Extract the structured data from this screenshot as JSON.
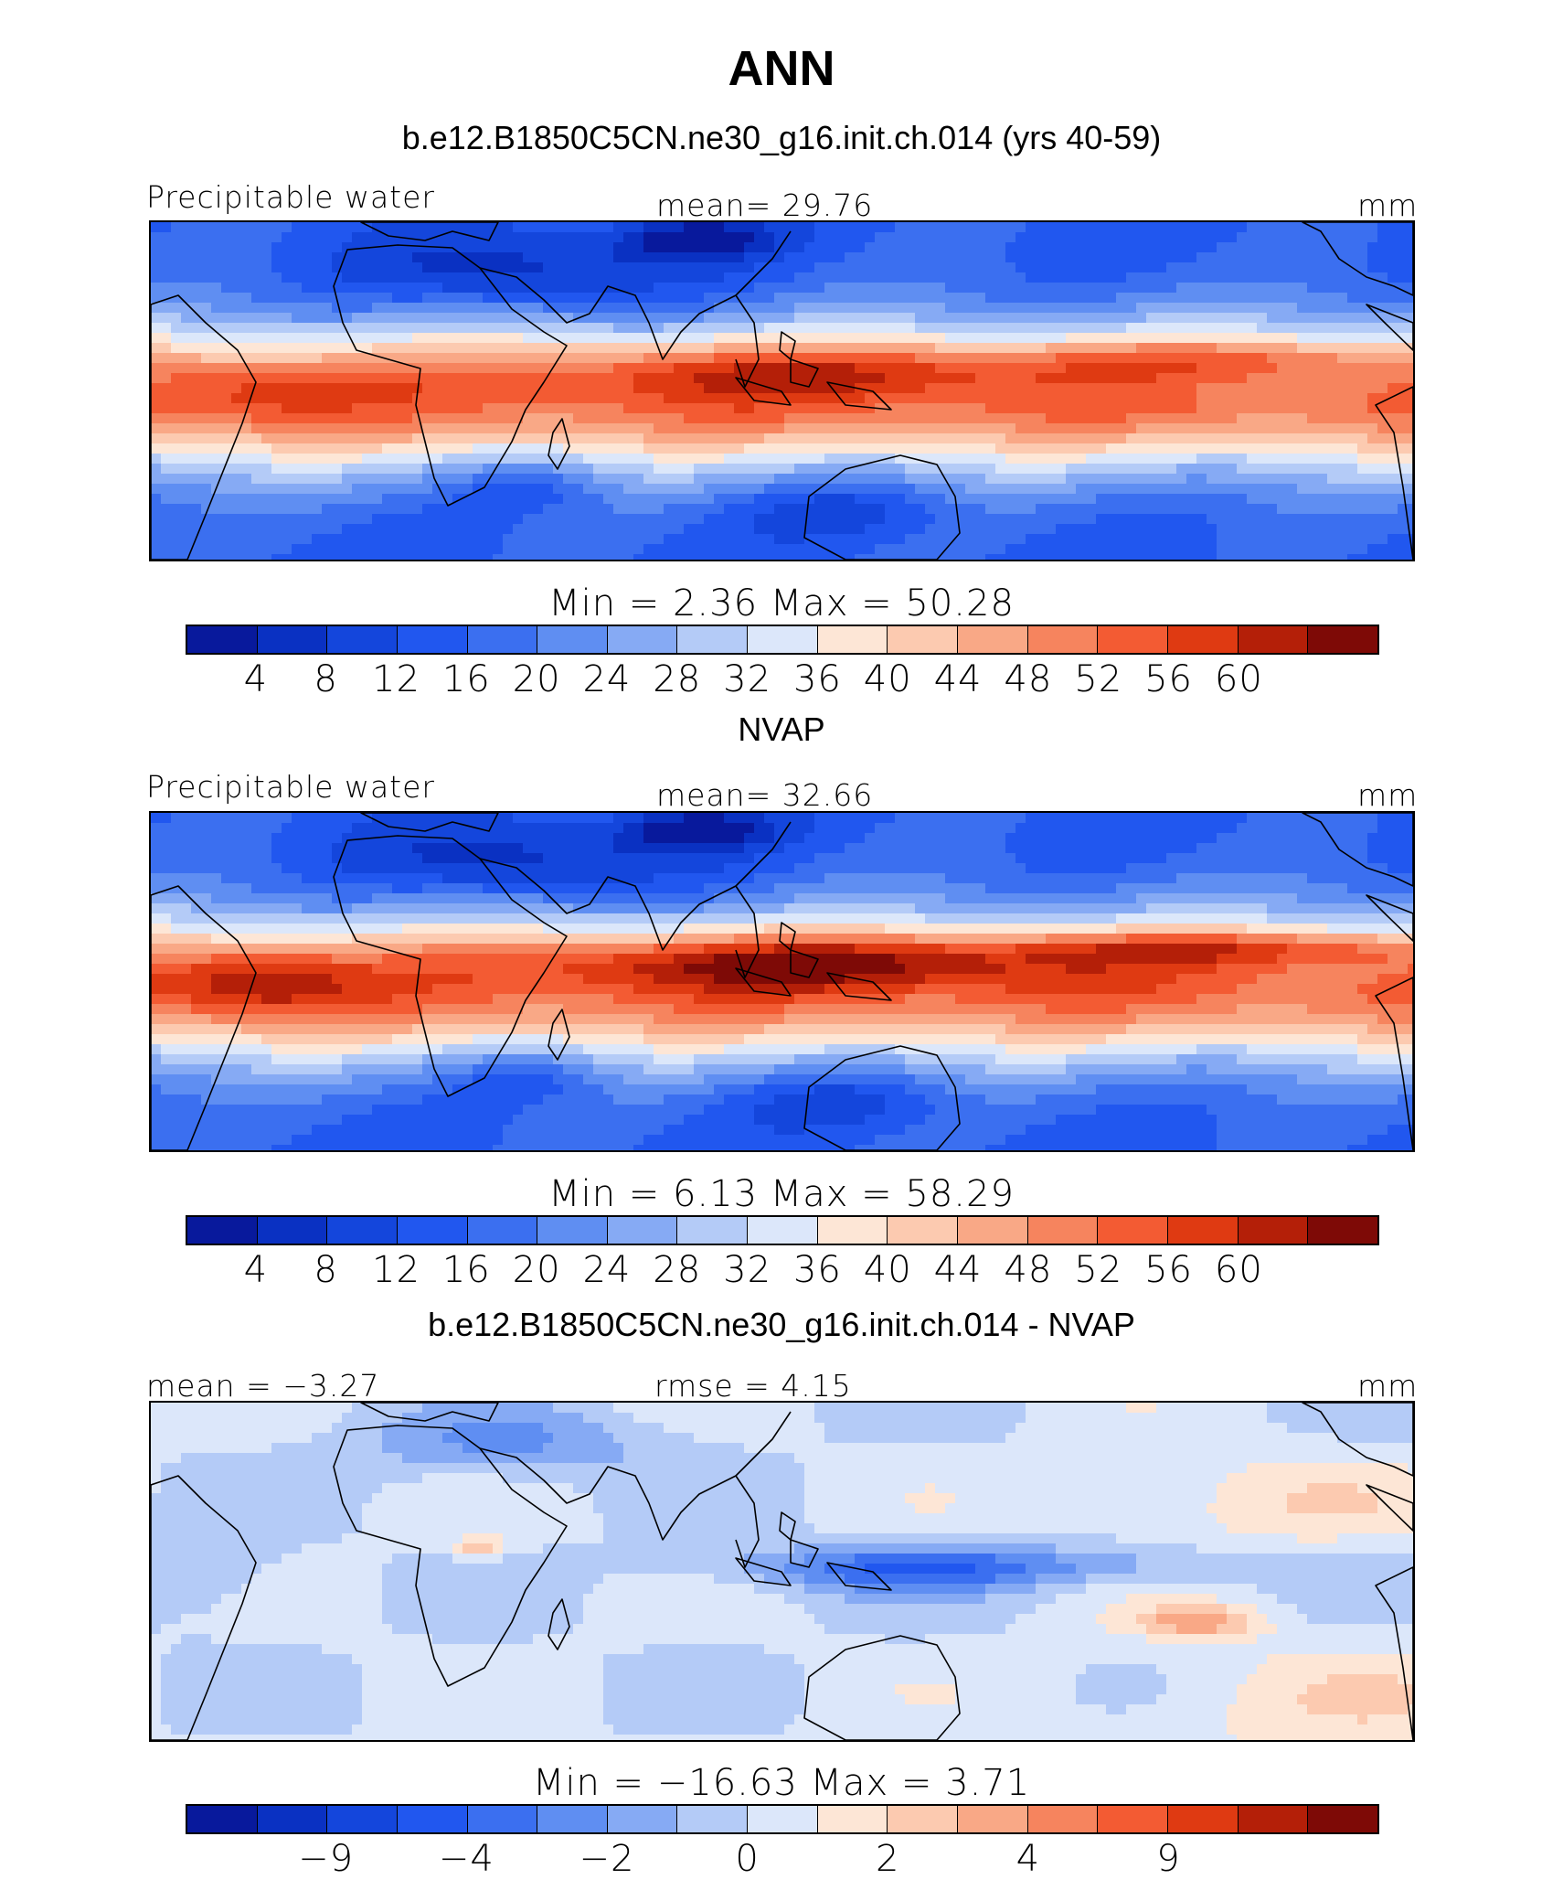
{
  "page_title": "ANN",
  "colorbar_colors": [
    "#08199c",
    "#0a31c2",
    "#1446dc",
    "#2157ef",
    "#3b6ff0",
    "#5f8ef2",
    "#86aaf4",
    "#b4cbf7",
    "#dce7fa",
    "#fde6d6",
    "#fccab0",
    "#f9a886",
    "#f6845e",
    "#f35b33",
    "#df3a12",
    "#b41f08",
    "#7e0a06"
  ],
  "panels": [
    {
      "id": "model",
      "heading": "b.e12.B1850C5CN.ne30_g16.init.ch.014 (yrs 40-59)",
      "left_label": "Precipitable  water",
      "center_label": "mean=   29.76",
      "units": "mm",
      "minmax": "Min  =     2.36  Max  =    50.28",
      "colorbar_ticks": [
        "4",
        "8",
        "12",
        "16",
        "20",
        "24",
        "28",
        "32",
        "36",
        "40",
        "44",
        "48",
        "52",
        "56",
        "60"
      ],
      "field": "model"
    },
    {
      "id": "obs",
      "heading": "NVAP",
      "left_label": "Precipitable  water",
      "center_label": "mean=   32.66",
      "units": "mm",
      "minmax": "Min  =     6.13  Max  =    58.29",
      "colorbar_ticks": [
        "4",
        "8",
        "12",
        "16",
        "20",
        "24",
        "28",
        "32",
        "36",
        "40",
        "44",
        "48",
        "52",
        "56",
        "60"
      ],
      "field": "obs"
    },
    {
      "id": "diff",
      "heading": "b.e12.B1850C5CN.ne30_g16.init.ch.014 - NVAP",
      "left_label": "mean  =   −3.27",
      "center_label": "rmse  =     4.15",
      "units": "mm",
      "minmax": "Min  =  −16.63  Max  =     3.71",
      "colorbar_ticks": [
        "−9",
        "−4",
        "−2",
        "0",
        "2",
        "4",
        "9"
      ],
      "field": "diff"
    }
  ]
}
